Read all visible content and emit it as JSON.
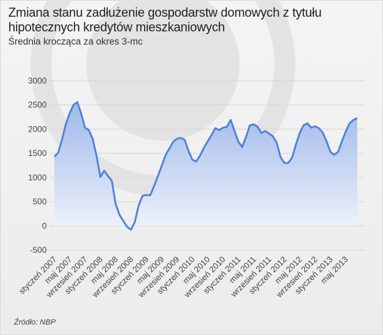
{
  "title": "Zmiana stanu zadłużenie gospodarstw domowych z tytułu hipotecznych kredytów mieszkaniowych",
  "subtitle": "Średnia krocząca za  okres 3-mc",
  "source": "Źródło: NBP",
  "colors": {
    "line": "#4e80d8",
    "fill_top": "#9eb8ea",
    "fill_bottom": "#eef2fb",
    "grid": "#d6d6d6",
    "logo": "#e3e3e3"
  },
  "chart_data": {
    "type": "area",
    "title": "Zmiana stanu zadłużenie gospodarstw domowych z tytułu hipotecznych kredytów mieszkaniowych",
    "subtitle": "Średnia krocząca za  okres 3-mc",
    "xlabel": "",
    "ylabel": "",
    "ylim": [
      -500,
      3000
    ],
    "yticks": [
      -500,
      0,
      500,
      1000,
      1500,
      2000,
      2500,
      3000
    ],
    "grid": true,
    "x": [
      "2007-01",
      "2007-02",
      "2007-03",
      "2007-04",
      "2007-05",
      "2007-06",
      "2007-07",
      "2007-08",
      "2007-09",
      "2007-10",
      "2007-11",
      "2007-12",
      "2008-01",
      "2008-02",
      "2008-03",
      "2008-04",
      "2008-05",
      "2008-06",
      "2008-07",
      "2008-08",
      "2008-09",
      "2008-10",
      "2008-11",
      "2008-12",
      "2009-01",
      "2009-02",
      "2009-03",
      "2009-04",
      "2009-05",
      "2009-06",
      "2009-07",
      "2009-08",
      "2009-09",
      "2009-10",
      "2009-11",
      "2009-12",
      "2010-01",
      "2010-02",
      "2010-03",
      "2010-04",
      "2010-05",
      "2010-06",
      "2010-07",
      "2010-08",
      "2010-09",
      "2010-10",
      "2010-11",
      "2010-12",
      "2011-01",
      "2011-02",
      "2011-03",
      "2011-04",
      "2011-05",
      "2011-06",
      "2011-07",
      "2011-08",
      "2011-09",
      "2011-10",
      "2011-11",
      "2011-12",
      "2012-01",
      "2012-02",
      "2012-03",
      "2012-04",
      "2012-05",
      "2012-06",
      "2012-07",
      "2012-08",
      "2012-09",
      "2012-10",
      "2012-11",
      "2012-12",
      "2013-01",
      "2013-02",
      "2013-03",
      "2013-04",
      "2013-05",
      "2013-06",
      "2013-07",
      "2013-08"
    ],
    "x_tick_labels": [
      {
        "x": "2007-01",
        "label": "styczeń 2007"
      },
      {
        "x": "2007-05",
        "label": "maj 2007"
      },
      {
        "x": "2007-09",
        "label": "wrzesień 2007"
      },
      {
        "x": "2008-01",
        "label": "styczeń 2008"
      },
      {
        "x": "2008-05",
        "label": "maj 2008"
      },
      {
        "x": "2008-09",
        "label": "wrzesień 2008"
      },
      {
        "x": "2009-01",
        "label": "styczeń 2009"
      },
      {
        "x": "2009-05",
        "label": "maj 2009"
      },
      {
        "x": "2009-09",
        "label": "wrzesień 2009"
      },
      {
        "x": "2010-01",
        "label": "styczeń 2010"
      },
      {
        "x": "2010-05",
        "label": "maj 2010"
      },
      {
        "x": "2010-09",
        "label": "wrzesień 2010"
      },
      {
        "x": "2011-01",
        "label": "styczeń 2011"
      },
      {
        "x": "2011-05",
        "label": "maj 2011"
      },
      {
        "x": "2011-09",
        "label": "wrzesień 2011"
      },
      {
        "x": "2012-01",
        "label": "styczeń 2012"
      },
      {
        "x": "2012-05",
        "label": "maj 2012"
      },
      {
        "x": "2012-09",
        "label": "wrzesień 2012"
      },
      {
        "x": "2013-01",
        "label": "styczeń 2013"
      },
      {
        "x": "2013-05",
        "label": "maj 2013"
      }
    ],
    "series": [
      {
        "values": [
          1430,
          1510,
          1780,
          2100,
          2330,
          2500,
          2560,
          2330,
          2030,
          1980,
          1800,
          1450,
          1010,
          1140,
          1030,
          930,
          450,
          230,
          100,
          -20,
          -80,
          80,
          420,
          620,
          640,
          630,
          820,
          1030,
          1240,
          1460,
          1600,
          1740,
          1800,
          1820,
          1780,
          1550,
          1370,
          1330,
          1450,
          1610,
          1750,
          1880,
          2020,
          1980,
          2030,
          2050,
          2190,
          1960,
          1740,
          1630,
          1840,
          2080,
          2100,
          2050,
          1920,
          1960,
          1910,
          1850,
          1720,
          1420,
          1300,
          1300,
          1410,
          1680,
          1920,
          2080,
          2120,
          2030,
          2060,
          2020,
          1930,
          1750,
          1530,
          1470,
          1530,
          1750,
          1950,
          2120,
          2190,
          2230
        ]
      }
    ]
  }
}
